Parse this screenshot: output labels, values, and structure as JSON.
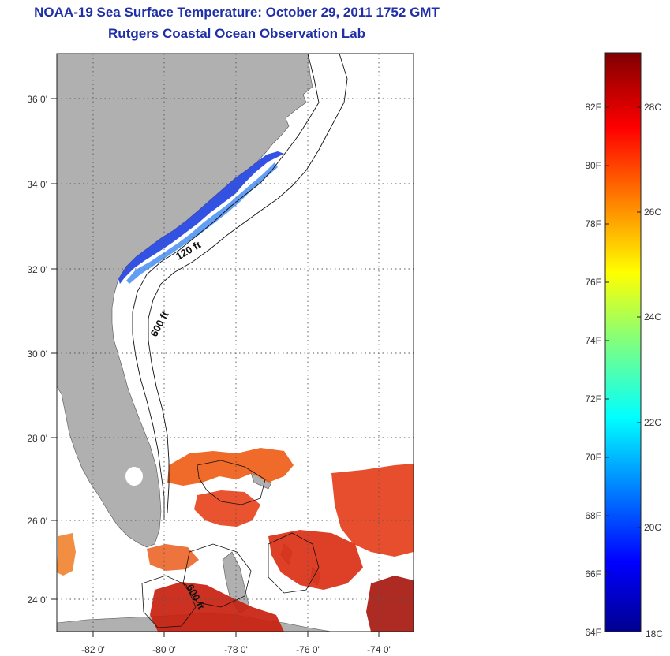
{
  "title": {
    "line1": "NOAA-19 Sea Surface Temperature:  October 29, 2011 1752 GMT",
    "line2": "Rutgers Coastal Ocean Observation Lab"
  },
  "map": {
    "lon_ticks": [
      "-82 0'",
      "-80 0'",
      "-78 0'",
      "-76 0'",
      "-74 0'"
    ],
    "lat_ticks": [
      "36 0'",
      "34 0'",
      "32 0'",
      "30 0'",
      "28 0'",
      "26 0'",
      "24 0'"
    ],
    "contour_labels": [
      "120 ft",
      "600 ft",
      "600 ft"
    ],
    "land_color": "#b0b0b0",
    "grid": "dotted"
  },
  "colorbar": {
    "fahrenheit_labels": [
      "82F",
      "80F",
      "78F",
      "76F",
      "74F",
      "72F",
      "70F",
      "68F",
      "66F",
      "64F"
    ],
    "celsius_labels": [
      "28C",
      "26C",
      "24C",
      "22C",
      "20C",
      "18C"
    ],
    "colormap": "jet",
    "min_c": 18,
    "max_c": 29
  }
}
